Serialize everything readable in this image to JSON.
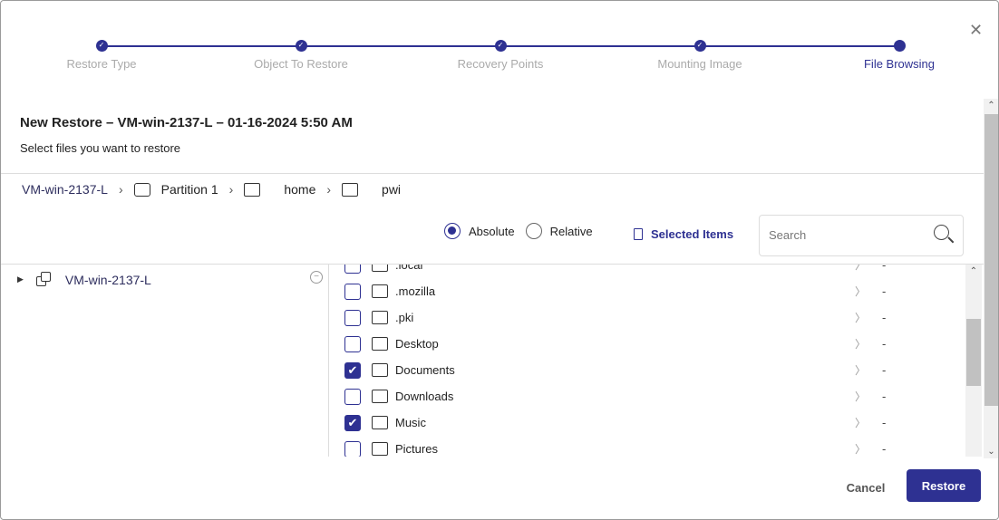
{
  "steps": [
    {
      "label": "Restore Type",
      "state": "done"
    },
    {
      "label": "Object To Restore",
      "state": "done"
    },
    {
      "label": "Recovery Points",
      "state": "done"
    },
    {
      "label": "Mounting Image",
      "state": "done"
    },
    {
      "label": "File Browsing",
      "state": "active"
    }
  ],
  "header": {
    "title": "New Restore – VM-win-2137-L – 01-16-2024 5:50 AM",
    "subtitle": "Select files you want to restore"
  },
  "breadcrumb": [
    "VM-win-2137-L",
    "Partition 1",
    "home",
    "pwi"
  ],
  "path_mode": {
    "options": [
      "Absolute",
      "Relative"
    ],
    "selected": "Absolute"
  },
  "selected_items_label": "Selected Items",
  "search": {
    "placeholder": "Search",
    "value": ""
  },
  "tree": {
    "root": "VM-win-2137-L"
  },
  "files": [
    {
      "name": ".local",
      "checked": false,
      "size": "-"
    },
    {
      "name": ".mozilla",
      "checked": false,
      "size": "-"
    },
    {
      "name": ".pki",
      "checked": false,
      "size": "-"
    },
    {
      "name": "Desktop",
      "checked": false,
      "size": "-"
    },
    {
      "name": "Documents",
      "checked": true,
      "size": "-"
    },
    {
      "name": "Downloads",
      "checked": false,
      "size": "-"
    },
    {
      "name": "Music",
      "checked": true,
      "size": "-"
    },
    {
      "name": "Pictures",
      "checked": false,
      "size": "-"
    }
  ],
  "footer": {
    "cancel": "Cancel",
    "restore": "Restore"
  },
  "colors": {
    "accent": "#2e3192"
  }
}
